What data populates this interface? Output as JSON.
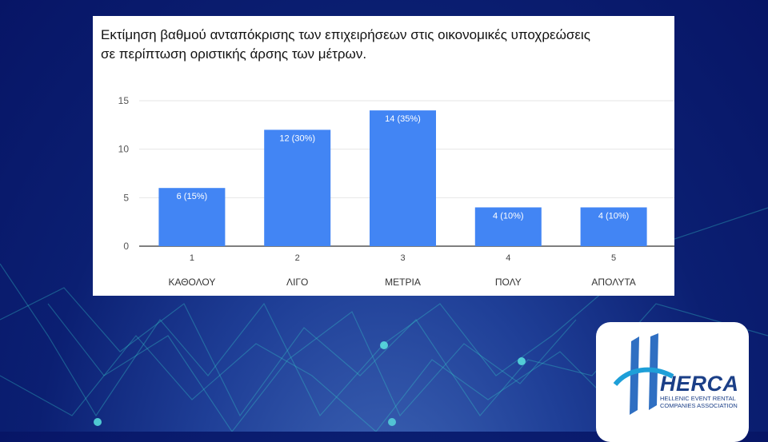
{
  "chart_data": {
    "type": "bar",
    "title": "Εκτίμηση βαθμού ανταπόκρισης των επιχειρήσεων στις οικονομικές υποχρεώσεις σε περίπτωση οριστικής άρσης των μέτρων.",
    "title_line1": "Εκτίμηση βαθμού ανταπόκρισης των επιχειρήσεων στις οικονομικές υποχρεώσεις",
    "title_line2": "σε περίπτωση οριστικής άρσης των μέτρων.",
    "categories": [
      "1",
      "2",
      "3",
      "4",
      "5"
    ],
    "category_labels": [
      "ΚΑΘΟΛΟΥ",
      "ΛΙΓΟ",
      "ΜΕΤΡΙΑ",
      "ΠΟΛΥ",
      "ΑΠΟΛΥΤΑ"
    ],
    "values": [
      6,
      12,
      14,
      4,
      4
    ],
    "data_labels": [
      "6 (15%)",
      "12 (30%)",
      "14 (35%)",
      "4 (10%)",
      "4 (10%)"
    ],
    "ylim": [
      0,
      15
    ],
    "yticks": [
      "0",
      "5",
      "10",
      "15"
    ],
    "grid": true,
    "bar_color": "#4285f4"
  },
  "logo": {
    "name": "HERCA",
    "subtitle_line1": "HELLENIC EVENT RENTAL",
    "subtitle_line2": "COMPANIES ASSOCIATION"
  }
}
